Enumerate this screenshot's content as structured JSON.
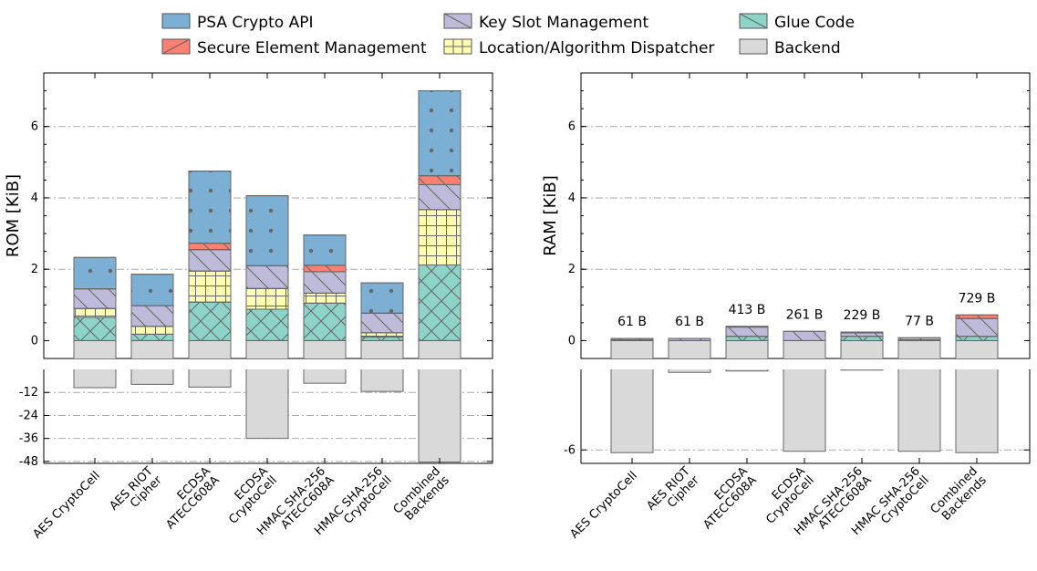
{
  "legend": [
    {
      "key": "psa",
      "label": "PSA Crypto API",
      "color": "#7bafd4",
      "pattern": "dots"
    },
    {
      "key": "ksm",
      "label": "Key Slot Management",
      "color": "#bebada",
      "pattern": "diag"
    },
    {
      "key": "glue",
      "label": "Glue Code",
      "color": "#8dd3c7",
      "pattern": "diag"
    },
    {
      "key": "sem",
      "label": "Secure Element Management",
      "color": "#fb8072",
      "pattern": "diag"
    },
    {
      "key": "dispatch",
      "label": "Location/Algorithm Dispatcher",
      "color": "#ffffb3",
      "pattern": "grid"
    },
    {
      "key": "backend",
      "label": "Backend",
      "color": "#d9d9d9",
      "pattern": "none"
    }
  ],
  "chart_data": [
    {
      "type": "bar",
      "stacked": true,
      "ylabel": "ROM [KiB]",
      "ylim_upper": [
        -0.5,
        7.5
      ],
      "ylim_lower": [
        -49,
        0
      ],
      "yticks_upper": [
        "0",
        "2",
        "4",
        "6"
      ],
      "yticks_lower": [
        "-12",
        "-24",
        "-36",
        "-48"
      ],
      "grid": "dash-dot horizontal",
      "categories": [
        "AES CryptoCell",
        "AES RIOT Cipher",
        "ECDSA ATECC608A",
        "ECDSA CryptoCell",
        "HMAC SHA-256 ATECC608A",
        "HMAC SHA-256 CryptoCell",
        "Combined Backends"
      ],
      "series": [
        {
          "name": "Glue Code",
          "values": [
            0.65,
            0.18,
            1.08,
            0.88,
            1.05,
            0.1,
            2.12
          ]
        },
        {
          "name": "Location/Algorithm Dispatcher",
          "values": [
            0.25,
            0.22,
            0.87,
            0.58,
            0.28,
            0.12,
            1.55
          ]
        },
        {
          "name": "Key Slot Management",
          "values": [
            0.55,
            0.58,
            0.6,
            0.64,
            0.6,
            0.55,
            0.7
          ]
        },
        {
          "name": "Secure Element Management",
          "values": [
            0,
            0,
            0.18,
            0,
            0.18,
            0,
            0.25
          ]
        },
        {
          "name": "PSA Crypto API",
          "values": [
            0.88,
            0.88,
            2.02,
            1.96,
            0.85,
            0.85,
            2.38
          ]
        },
        {
          "name": "Backend",
          "values": [
            -9.5,
            -7.8,
            -9.2,
            -36,
            -7.2,
            -11.5,
            -48.3
          ]
        }
      ]
    },
    {
      "type": "bar",
      "stacked": true,
      "ylabel": "RAM [KiB]",
      "ylim_upper": [
        -0.5,
        7.5
      ],
      "ylim_lower": [
        -7,
        0
      ],
      "yticks_upper": [
        "0",
        "2",
        "4",
        "6"
      ],
      "yticks_lower": [
        "-6"
      ],
      "grid": "dash-dot horizontal",
      "categories": [
        "AES CryptoCell",
        "AES RIOT Cipher",
        "ECDSA ATECC608A",
        "ECDSA CryptoCell",
        "HMAC SHA-256 ATECC608A",
        "HMAC SHA-256 CryptoCell",
        "Combined Backends"
      ],
      "annotations": [
        "61 B",
        "61 B",
        "413 B",
        "261 B",
        "229 B",
        "77 B",
        "729 B"
      ],
      "series": [
        {
          "name": "Glue Code",
          "values": [
            0.02,
            0,
            0.12,
            0,
            0.12,
            0.02,
            0.12
          ]
        },
        {
          "name": "Key Slot Management",
          "values": [
            0.04,
            0.06,
            0.26,
            0.26,
            0.1,
            0.06,
            0.5
          ]
        },
        {
          "name": "Secure Element Management",
          "values": [
            0,
            0,
            0.02,
            0,
            0.02,
            0,
            0.1
          ]
        },
        {
          "name": "Backend",
          "values": [
            -6.2,
            -0.22,
            -0.12,
            -6.1,
            -0.05,
            -6.1,
            -6.2
          ]
        }
      ]
    }
  ]
}
